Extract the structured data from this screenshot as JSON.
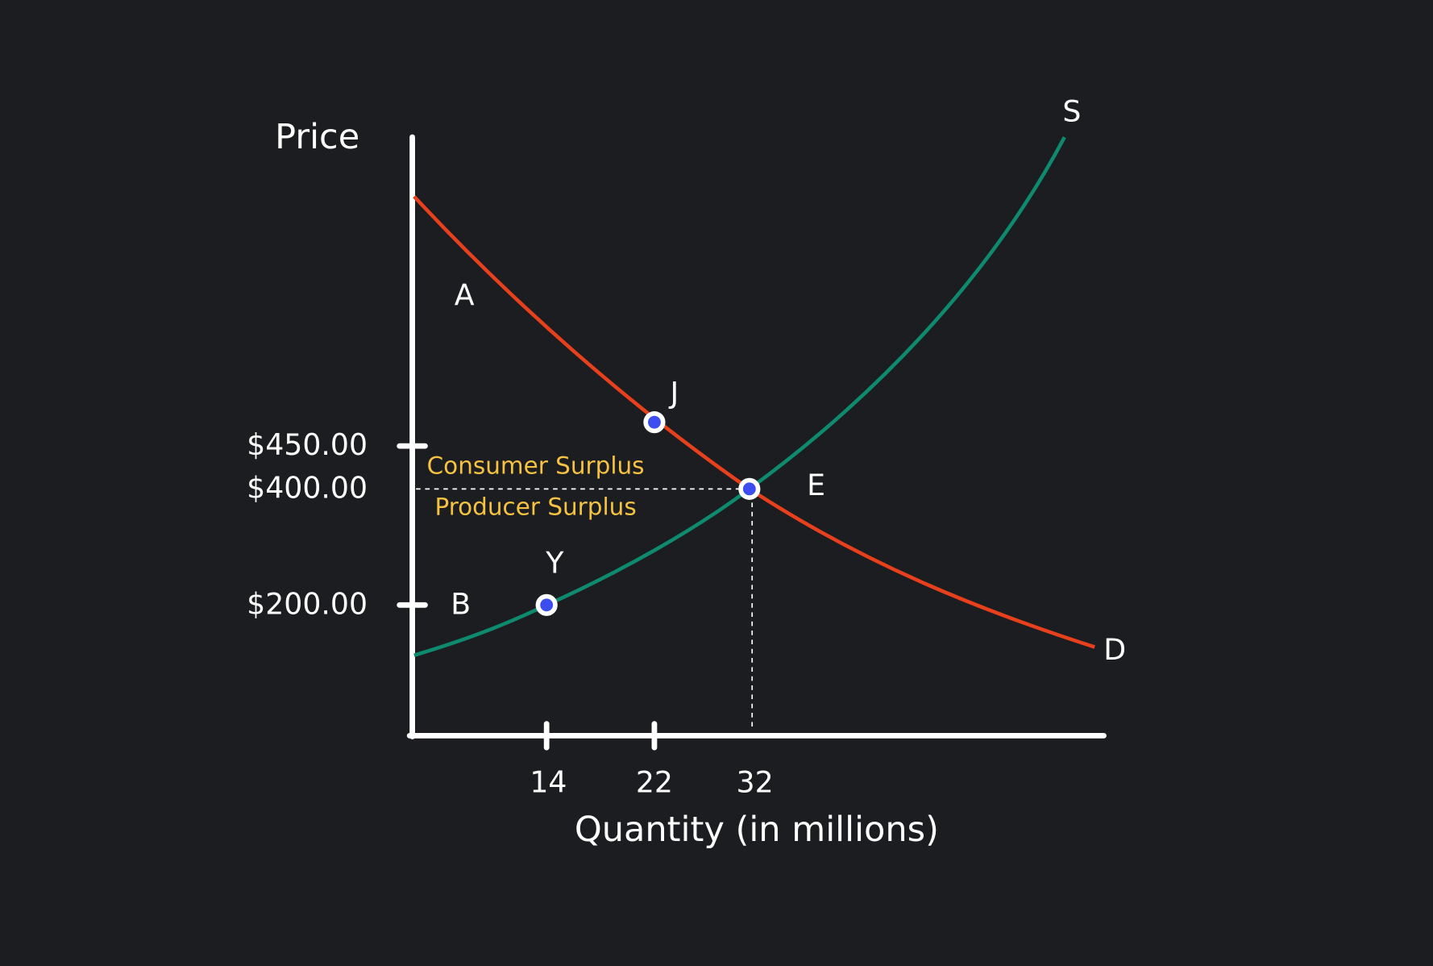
{
  "axes": {
    "y_label": "Price",
    "x_label": "Quantity (in millions)",
    "y_ticks": [
      "$450.00",
      "$400.00",
      "$200.00"
    ],
    "x_ticks": [
      "14",
      "22",
      "32"
    ]
  },
  "curves": {
    "supply": "S",
    "demand": "D"
  },
  "points": {
    "j": "J",
    "e": "E",
    "y": "Y"
  },
  "regions": {
    "a": "A",
    "b": "B",
    "consumer": "Consumer Surplus",
    "producer": "Producer Surplus"
  }
}
